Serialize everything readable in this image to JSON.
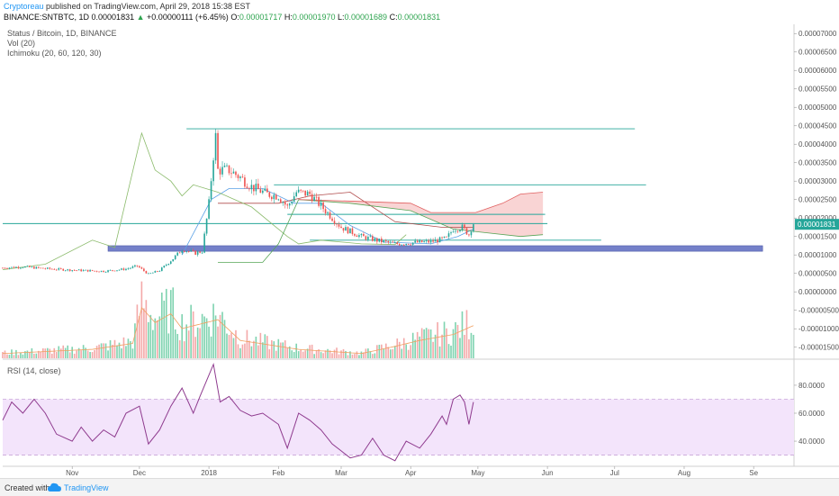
{
  "header": {
    "author": "Cryptoreau",
    "published_text": "published on TradingView.com, April 29, 2018 15:38 EST",
    "symbol": "BINANCE:SNTBTC, 1D",
    "last": "0.00001831",
    "change_arrow": "▲",
    "change": "+0.00000111 (+6.45%)",
    "o_label": "O:",
    "o_value": "0.00001717",
    "h_label": "H:",
    "h_value": "0.00001970",
    "l_label": "L:",
    "l_value": "0.00001689",
    "c_label": "C:",
    "c_value": "0.00001831"
  },
  "legend": {
    "title": "Status / Bitcoin, 1D, BINANCE",
    "volume": "Vol (20)",
    "ichimoku": "Ichimoku (20, 60, 120, 30)",
    "rsi": "RSI (14, close)"
  },
  "colors": {
    "up": "#26a69a",
    "down": "#ef5350",
    "vol_up": "#7fd3b0",
    "vol_down": "#f4a9a9",
    "tenkan": "#5aa0e6",
    "kijun": "#b04a4a",
    "chikou": "#8aba6a",
    "span_a": "#57a557",
    "span_b": "#e06060",
    "cloud_bear": "#f8cccc",
    "support_band": "#5c6bc0",
    "level_line": "#26a69a",
    "rsi_line": "#8e3a8e",
    "rsi_band": "#f3e4fb",
    "vol_ma": "#f0a060"
  },
  "chart_data": [
    {
      "type": "candlestick",
      "title": "Status / Bitcoin, 1D, BINANCE",
      "y_ticks": [
        "0.00007000",
        "0.00006500",
        "0.00006000",
        "0.00005500",
        "0.00005000",
        "0.00004500",
        "0.00004000",
        "0.00003500",
        "0.00003000",
        "0.00002500",
        "0.00002000",
        "0.00001500",
        "0.00001000",
        "0.00000500",
        "0.00000000",
        "-0.00000500",
        "-0.00001000",
        "-0.00001500"
      ],
      "ylim": [
        -1.8e-05,
        7.25e-05
      ],
      "last_price_label": "0.00001831",
      "x_labels": [
        "Nov",
        "Dec",
        "2018",
        "Feb",
        "Mar",
        "Apr",
        "May",
        "Jun",
        "Jul",
        "Aug",
        "Se"
      ],
      "x_start": "2017-10-01",
      "close_anchors": [
        [
          "2017-10-01",
          6.5e-06
        ],
        [
          "2017-10-10",
          6.8e-06
        ],
        [
          "2017-10-20",
          6.3e-06
        ],
        [
          "2017-11-01",
          5.9e-06
        ],
        [
          "2017-11-15",
          5.6e-06
        ],
        [
          "2017-11-25",
          6.2e-06
        ],
        [
          "2017-11-30",
          7e-06
        ],
        [
          "2017-12-05",
          4.8e-06
        ],
        [
          "2017-12-10",
          5.8e-06
        ],
        [
          "2017-12-16",
          9e-06
        ],
        [
          "2017-12-20",
          1.15e-05
        ],
        [
          "2017-12-26",
          1.05e-05
        ],
        [
          "2017-12-29",
          1.1e-05
        ],
        [
          "2018-01-01",
          2.4e-05
        ],
        [
          "2018-01-03",
          3.7e-05
        ],
        [
          "2018-01-04",
          4.2e-05
        ],
        [
          "2018-01-05",
          3.3e-05
        ],
        [
          "2018-01-10",
          3.3e-05
        ],
        [
          "2018-01-15",
          3.1e-05
        ],
        [
          "2018-01-20",
          2.85e-05
        ],
        [
          "2018-01-27",
          2.65e-05
        ],
        [
          "2018-02-01",
          2.6e-05
        ],
        [
          "2018-02-05",
          2.3e-05
        ],
        [
          "2018-02-09",
          2.7e-05
        ],
        [
          "2018-02-15",
          2.65e-05
        ],
        [
          "2018-02-22",
          2.2e-05
        ],
        [
          "2018-03-01",
          1.75e-05
        ],
        [
          "2018-03-10",
          1.5e-05
        ],
        [
          "2018-03-18",
          1.38e-05
        ],
        [
          "2018-03-25",
          1.3e-05
        ],
        [
          "2018-04-01",
          1.33e-05
        ],
        [
          "2018-04-10",
          1.36e-05
        ],
        [
          "2018-04-17",
          1.45e-05
        ],
        [
          "2018-04-20",
          1.7e-05
        ],
        [
          "2018-04-24",
          1.75e-05
        ],
        [
          "2018-04-27",
          1.55e-05
        ],
        [
          "2018-04-28",
          1.72e-05
        ],
        [
          "2018-04-29",
          1.83e-05
        ]
      ],
      "ichimoku_lines": [
        {
          "name": "tenkan",
          "points": [
            [
              "2017-12-20",
              1e-05
            ],
            [
              "2018-01-02",
              2.5e-05
            ],
            [
              "2018-01-10",
              2.8e-05
            ],
            [
              "2018-01-25",
              2.8e-05
            ],
            [
              "2018-02-08",
              2.4e-05
            ],
            [
              "2018-02-20",
              2.4e-05
            ],
            [
              "2018-03-05",
              1.8e-05
            ],
            [
              "2018-03-20",
              1.35e-05
            ],
            [
              "2018-04-10",
              1.3e-05
            ],
            [
              "2018-04-22",
              1.5e-05
            ],
            [
              "2018-04-29",
              1.7e-05
            ]
          ]
        },
        {
          "name": "kijun",
          "points": [
            [
              "2018-01-05",
              2.4e-05
            ],
            [
              "2018-02-01",
              2.4e-05
            ],
            [
              "2018-02-15",
              2.6e-05
            ],
            [
              "2018-03-05",
              2.7e-05
            ],
            [
              "2018-03-15",
              2.3e-05
            ],
            [
              "2018-03-25",
              1.9e-05
            ],
            [
              "2018-04-15",
              1.75e-05
            ],
            [
              "2018-04-29",
              1.75e-05
            ]
          ]
        },
        {
          "name": "chikou",
          "points": [
            [
              "2017-10-01",
              6e-06
            ],
            [
              "2017-10-20",
              7.5e-06
            ],
            [
              "2017-11-10",
              1.4e-05
            ],
            [
              "2017-11-20",
              1.2e-05
            ],
            [
              "2017-12-02",
              4.3e-05
            ],
            [
              "2017-12-08",
              3.3e-05
            ],
            [
              "2017-12-15",
              3e-05
            ],
            [
              "2017-12-20",
              2.6e-05
            ],
            [
              "2017-12-25",
              2.9e-05
            ],
            [
              "2018-01-05",
              2.7e-05
            ],
            [
              "2018-01-20",
              2.3e-05
            ],
            [
              "2018-01-30",
              1.8e-05
            ],
            [
              "2018-02-05",
              1.5e-05
            ],
            [
              "2018-02-10",
              1.3e-05
            ],
            [
              "2018-02-20",
              1.4e-05
            ],
            [
              "2018-03-10",
              1.3e-05
            ],
            [
              "2018-03-25",
              1.28e-05
            ],
            [
              "2018-03-30",
              1.55e-05
            ]
          ]
        },
        {
          "name": "span_a",
          "points": [
            [
              "2018-01-05",
              8e-06
            ],
            [
              "2018-01-25",
              8e-06
            ],
            [
              "2018-02-01",
              1.3e-05
            ],
            [
              "2018-02-10",
              2.5e-05
            ],
            [
              "2018-03-05",
              2.4e-05
            ],
            [
              "2018-04-01",
              2.2e-05
            ],
            [
              "2018-04-20",
              1.7e-05
            ],
            [
              "2018-05-05",
              1.6e-05
            ],
            [
              "2018-05-20",
              1.5e-05
            ],
            [
              "2018-05-30",
              1.55e-05
            ]
          ]
        },
        {
          "name": "span_b",
          "points": [
            [
              "2018-02-10",
              2.5e-05
            ],
            [
              "2018-03-10",
              2.45e-05
            ],
            [
              "2018-04-01",
              2.4e-05
            ],
            [
              "2018-04-10",
              2.15e-05
            ],
            [
              "2018-04-30",
              2.15e-05
            ],
            [
              "2018-05-12",
              2.4e-05
            ],
            [
              "2018-05-20",
              2.65e-05
            ],
            [
              "2018-05-30",
              2.7e-05
            ]
          ]
        }
      ],
      "levels": [
        {
          "start": "2017-12-22",
          "end": "2018-07-10",
          "value": 4.42e-05
        },
        {
          "start": "2018-01-30",
          "end": "2018-07-15",
          "value": 2.9e-05
        },
        {
          "start": "2018-02-05",
          "end": "2018-05-31",
          "value": 2.1e-05
        },
        {
          "start": "2017-10-01",
          "end": "2018-06-01",
          "value": 1.85e-05
        },
        {
          "start": "2018-02-15",
          "end": "2018-06-25",
          "value": 1.4e-05
        }
      ],
      "support_band": {
        "start": "2017-11-17",
        "end": "2018-09-05",
        "from": 1.1e-05,
        "to": 1.25e-05
      }
    },
    {
      "type": "bar",
      "title": "Vol (20)",
      "note": "relative volume, drawn in lower part of price pane",
      "anchors": [
        [
          "2017-10-01",
          0.08
        ],
        [
          "2017-11-10",
          0.15
        ],
        [
          "2017-11-28",
          0.25
        ],
        [
          "2017-12-02",
          0.85
        ],
        [
          "2017-12-08",
          0.6
        ],
        [
          "2017-12-15",
          0.75
        ],
        [
          "2017-12-20",
          0.5
        ],
        [
          "2018-01-05",
          0.65
        ],
        [
          "2018-01-15",
          0.3
        ],
        [
          "2018-02-10",
          0.15
        ],
        [
          "2018-03-10",
          0.08
        ],
        [
          "2018-03-25",
          0.2
        ],
        [
          "2018-04-05",
          0.3
        ],
        [
          "2018-04-20",
          0.4
        ],
        [
          "2018-04-29",
          0.55
        ]
      ]
    },
    {
      "type": "line",
      "title": "RSI (14, close)",
      "y_ticks": [
        "80.0000",
        "60.0000",
        "40.0000"
      ],
      "ylim": [
        22,
        98
      ],
      "band": [
        30,
        70
      ],
      "points": [
        [
          "2017-10-01",
          55
        ],
        [
          "2017-10-05",
          68
        ],
        [
          "2017-10-10",
          60
        ],
        [
          "2017-10-15",
          70
        ],
        [
          "2017-10-20",
          60
        ],
        [
          "2017-10-25",
          45
        ],
        [
          "2017-11-01",
          40
        ],
        [
          "2017-11-05",
          50
        ],
        [
          "2017-11-10",
          40
        ],
        [
          "2017-11-15",
          48
        ],
        [
          "2017-11-20",
          43
        ],
        [
          "2017-11-25",
          60
        ],
        [
          "2017-12-01",
          65
        ],
        [
          "2017-12-05",
          38
        ],
        [
          "2017-12-10",
          48
        ],
        [
          "2017-12-15",
          65
        ],
        [
          "2017-12-20",
          78
        ],
        [
          "2017-12-25",
          60
        ],
        [
          "2017-12-28",
          72
        ],
        [
          "2018-01-03",
          95
        ],
        [
          "2018-01-06",
          68
        ],
        [
          "2018-01-10",
          72
        ],
        [
          "2018-01-15",
          62
        ],
        [
          "2018-01-20",
          58
        ],
        [
          "2018-01-25",
          60
        ],
        [
          "2018-02-01",
          52
        ],
        [
          "2018-02-05",
          35
        ],
        [
          "2018-02-10",
          60
        ],
        [
          "2018-02-15",
          55
        ],
        [
          "2018-02-20",
          48
        ],
        [
          "2018-02-25",
          38
        ],
        [
          "2018-03-01",
          33
        ],
        [
          "2018-03-05",
          28
        ],
        [
          "2018-03-10",
          30
        ],
        [
          "2018-03-15",
          42
        ],
        [
          "2018-03-20",
          30
        ],
        [
          "2018-03-25",
          26
        ],
        [
          "2018-03-30",
          40
        ],
        [
          "2018-04-05",
          35
        ],
        [
          "2018-04-10",
          45
        ],
        [
          "2018-04-15",
          58
        ],
        [
          "2018-04-17",
          52
        ],
        [
          "2018-04-20",
          70
        ],
        [
          "2018-04-23",
          73
        ],
        [
          "2018-04-25",
          68
        ],
        [
          "2018-04-27",
          52
        ],
        [
          "2018-04-28",
          60
        ],
        [
          "2018-04-29",
          68
        ]
      ]
    }
  ],
  "footer": {
    "created_with": "Created with",
    "brand": "TradingView"
  }
}
